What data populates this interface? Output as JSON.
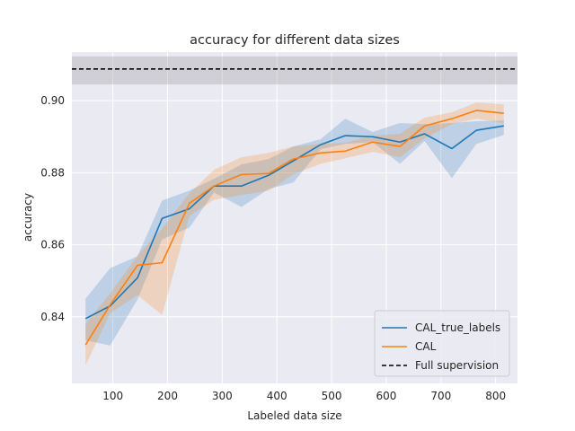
{
  "chart_data": {
    "type": "line",
    "title": "accuracy for different data sizes",
    "xlabel": "Labeled data size",
    "ylabel": "accuracy",
    "xlim": [
      25,
      840
    ],
    "ylim": [
      0.8215,
      0.9135
    ],
    "xticks": [
      100,
      200,
      300,
      400,
      500,
      600,
      700,
      800
    ],
    "yticks": [
      0.84,
      0.86,
      0.88,
      0.9
    ],
    "ytick_labels": [
      "0.84",
      "0.86",
      "0.88",
      "0.90"
    ],
    "grid": true,
    "legend_position": "lower right",
    "series": [
      {
        "name": "CAL_true_labels",
        "color": "#1f77b4",
        "x": [
          50,
          95,
          145,
          190,
          240,
          285,
          335,
          385,
          430,
          480,
          525,
          575,
          625,
          670,
          720,
          765,
          815
        ],
        "y": [
          0.8395,
          0.843,
          0.8508,
          0.8673,
          0.87,
          0.8763,
          0.8763,
          0.8793,
          0.8833,
          0.8878,
          0.8903,
          0.89,
          0.8885,
          0.8908,
          0.8867,
          0.8918,
          0.893
        ],
        "band_low": [
          0.8335,
          0.832,
          0.8448,
          0.8615,
          0.8648,
          0.8745,
          0.8705,
          0.8755,
          0.8773,
          0.8865,
          0.888,
          0.8885,
          0.8825,
          0.8888,
          0.8785,
          0.888,
          0.8905
        ],
        "band_high": [
          0.845,
          0.8535,
          0.8568,
          0.8723,
          0.875,
          0.8783,
          0.8823,
          0.8838,
          0.8873,
          0.8893,
          0.895,
          0.8913,
          0.8938,
          0.8935,
          0.8938,
          0.8943,
          0.8945
        ]
      },
      {
        "name": "CAL",
        "color": "#ff7f0e",
        "x": [
          50,
          95,
          145,
          190,
          240,
          285,
          335,
          385,
          430,
          480,
          525,
          575,
          625,
          670,
          720,
          765,
          815
        ],
        "y": [
          0.8322,
          0.8433,
          0.8543,
          0.855,
          0.8715,
          0.8763,
          0.8795,
          0.8798,
          0.8838,
          0.8855,
          0.886,
          0.8885,
          0.8873,
          0.893,
          0.895,
          0.8973,
          0.8965
        ],
        "band_low": [
          0.8265,
          0.841,
          0.846,
          0.8405,
          0.868,
          0.8725,
          0.8738,
          0.875,
          0.8795,
          0.8825,
          0.884,
          0.8858,
          0.8843,
          0.8895,
          0.8935,
          0.895,
          0.8938
        ],
        "band_high": [
          0.838,
          0.8465,
          0.857,
          0.8645,
          0.8743,
          0.8808,
          0.8843,
          0.8855,
          0.8873,
          0.888,
          0.8883,
          0.8903,
          0.8908,
          0.8953,
          0.8968,
          0.8995,
          0.899
        ]
      }
    ],
    "reference": {
      "name": "Full supervision",
      "color": "#000000",
      "style": "dashed",
      "y": 0.9088,
      "band_low": 0.9045,
      "band_high": 0.9123
    }
  }
}
